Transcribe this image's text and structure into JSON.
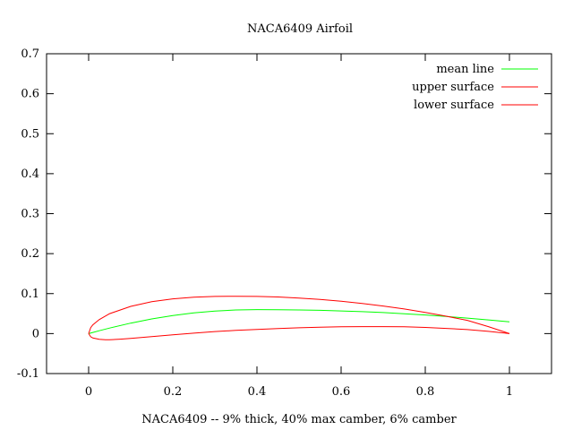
{
  "chart_data": {
    "type": "line",
    "title": "NACA6409 Airfoil",
    "xlabel": "NACA6409 -- 9% thick, 40% max camber, 6% camber",
    "ylabel": "",
    "xlim": [
      -0.1,
      1.1
    ],
    "ylim": [
      -0.1,
      0.7
    ],
    "xticks": [
      0,
      0.2,
      0.4,
      0.6,
      0.8,
      1
    ],
    "xtick_labels": [
      "0",
      "0.2",
      "0.4",
      "0.6",
      "0.8",
      "1"
    ],
    "yticks": [
      -0.1,
      0,
      0.1,
      0.2,
      0.3,
      0.4,
      0.5,
      0.6,
      0.7
    ],
    "ytick_labels": [
      "-0.1",
      "0",
      "0.1",
      "0.2",
      "0.3",
      "0.4",
      "0.5",
      "0.6",
      "0.7"
    ],
    "grid": false,
    "legend_position": "top-right",
    "series": [
      {
        "name": "mean line",
        "color": "#00ff00",
        "x": [
          0,
          0.01,
          0.025,
          0.05,
          0.1,
          0.15,
          0.2,
          0.25,
          0.3,
          0.35,
          0.4,
          0.45,
          0.5,
          0.55,
          0.6,
          0.65,
          0.7,
          0.75,
          0.8,
          0.85,
          0.9,
          0.95,
          1.0
        ],
        "y": [
          0,
          0.0029,
          0.0072,
          0.0139,
          0.0262,
          0.0366,
          0.045,
          0.0516,
          0.0563,
          0.0591,
          0.06,
          0.0598,
          0.0592,
          0.0581,
          0.0567,
          0.0548,
          0.0525,
          0.0497,
          0.0465,
          0.0428,
          0.0387,
          0.0342,
          0.0292
        ]
      },
      {
        "name": "upper surface",
        "color": "#ff0000",
        "x": [
          0,
          0.005,
          0.01,
          0.025,
          0.05,
          0.1,
          0.15,
          0.2,
          0.25,
          0.3,
          0.35,
          0.4,
          0.45,
          0.5,
          0.55,
          0.6,
          0.65,
          0.7,
          0.75,
          0.8,
          0.85,
          0.9,
          0.95,
          1.0
        ],
        "y": [
          0,
          0.015,
          0.022,
          0.035,
          0.05,
          0.068,
          0.08,
          0.087,
          0.091,
          0.093,
          0.0935,
          0.093,
          0.0915,
          0.089,
          0.0855,
          0.081,
          0.0755,
          0.069,
          0.0615,
          0.053,
          0.0435,
          0.033,
          0.0175,
          0.0
        ]
      },
      {
        "name": "lower surface",
        "color": "#ff0000",
        "x": [
          0,
          0.005,
          0.01,
          0.025,
          0.04,
          0.05,
          0.075,
          0.1,
          0.15,
          0.2,
          0.25,
          0.3,
          0.35,
          0.4,
          0.45,
          0.5,
          0.55,
          0.6,
          0.65,
          0.7,
          0.75,
          0.8,
          0.85,
          0.9,
          0.95,
          1.0
        ],
        "y": [
          0,
          -0.008,
          -0.011,
          -0.0145,
          -0.0155,
          -0.0155,
          -0.014,
          -0.012,
          -0.0075,
          -0.003,
          0.001,
          0.005,
          0.008,
          0.0105,
          0.0125,
          0.0145,
          0.016,
          0.017,
          0.0175,
          0.0175,
          0.017,
          0.0155,
          0.013,
          0.01,
          0.0055,
          0.0
        ]
      }
    ]
  }
}
